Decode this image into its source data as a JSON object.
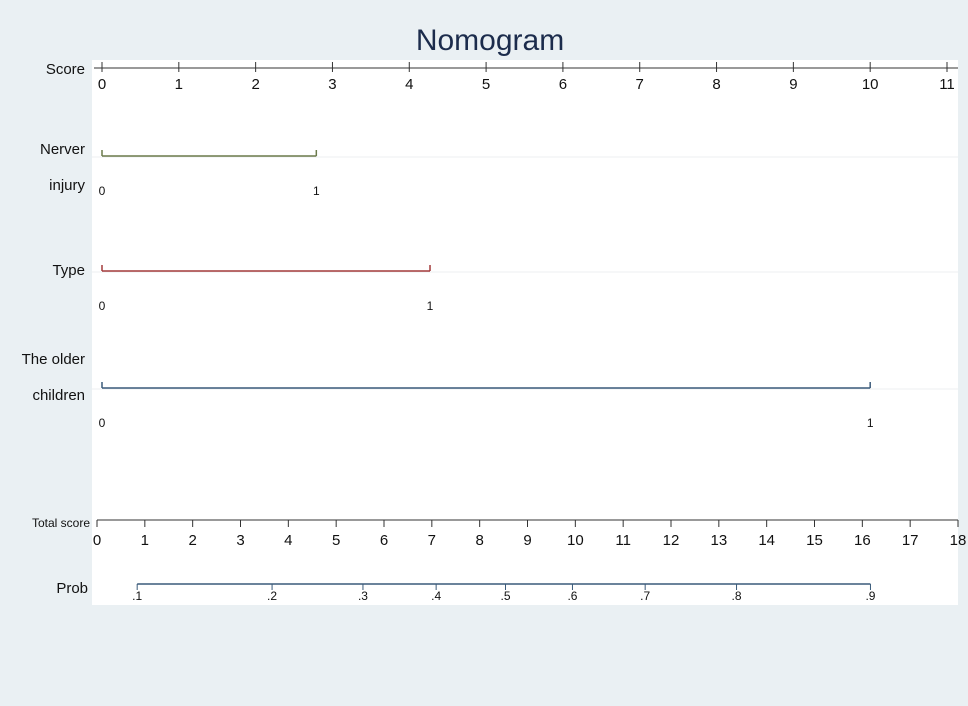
{
  "chart_data": {
    "type": "nomogram",
    "title": "Nomogram",
    "score_axis": {
      "label": "Score",
      "lim": [
        0,
        11
      ],
      "ticks": [
        0,
        1,
        2,
        3,
        4,
        5,
        6,
        7,
        8,
        9,
        10,
        11
      ]
    },
    "variables": [
      {
        "label_lines": [
          "Nerver",
          "injury"
        ],
        "levels": [
          0,
          1
        ],
        "points": [
          0,
          2.79
        ],
        "color": "#6b7a4a"
      },
      {
        "label_lines": [
          "Type"
        ],
        "levels": [
          0,
          1
        ],
        "points": [
          0,
          4.27
        ],
        "color": "#a33a3a"
      },
      {
        "label_lines": [
          "The older",
          "children"
        ],
        "levels": [
          0,
          1
        ],
        "points": [
          0,
          10
        ],
        "color": "#3a5a7a"
      }
    ],
    "total_axis": {
      "label": "Total score",
      "lim": [
        0,
        18
      ],
      "ticks": [
        0,
        1,
        2,
        3,
        4,
        5,
        6,
        7,
        8,
        9,
        10,
        11,
        12,
        13,
        14,
        15,
        16,
        17,
        18
      ]
    },
    "prob_axis": {
      "label": "Prob",
      "color": "#3a5a7a",
      "levels": [
        {
          "value": 0.1,
          "label": ".1"
        },
        {
          "value": 0.2,
          "label": ".2"
        },
        {
          "value": 0.3,
          "label": ".3"
        },
        {
          "value": 0.4,
          "label": ".4"
        },
        {
          "value": 0.5,
          "label": ".5"
        },
        {
          "value": 0.6,
          "label": ".6"
        },
        {
          "value": 0.7,
          "label": ".7"
        },
        {
          "value": 0.8,
          "label": ".8"
        },
        {
          "value": 0.9,
          "label": ".9"
        }
      ],
      "positions": [
        0.84,
        3.66,
        5.56,
        7.09,
        8.54,
        9.94,
        11.46,
        13.37,
        16.17
      ]
    }
  }
}
